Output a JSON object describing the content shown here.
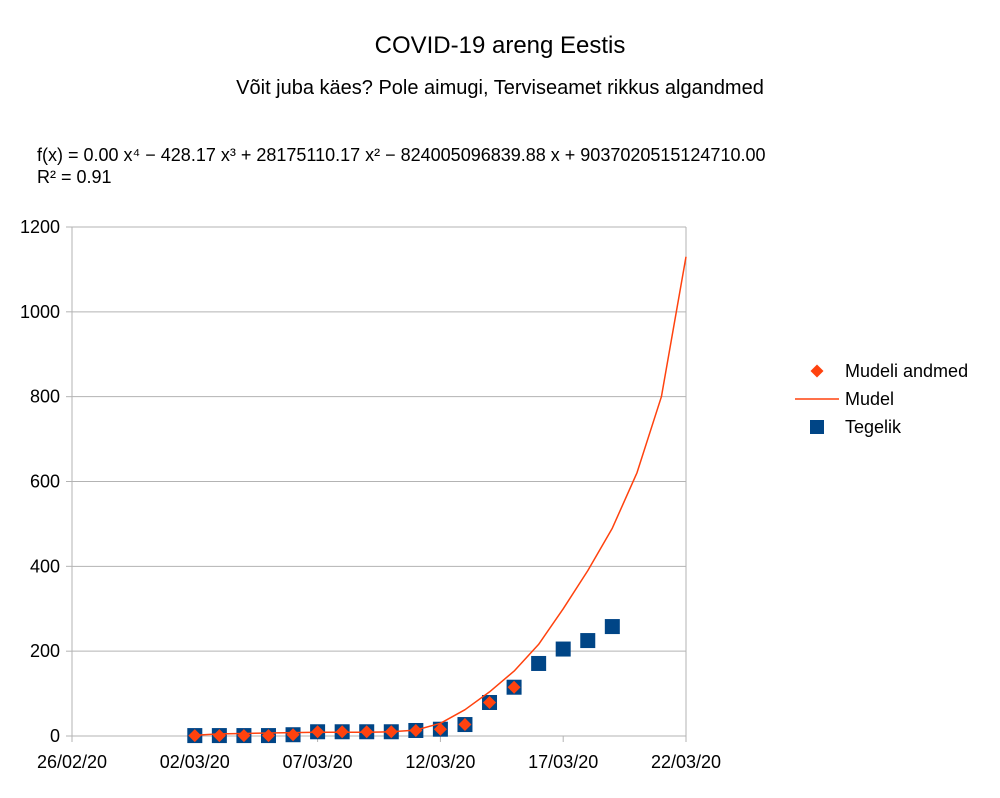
{
  "chart_data": {
    "type": "scatter",
    "title": "COVID-19 areng Eestis",
    "subtitle": "Võit juba käes? Pole aimugi, Terviseamet rikkus algandmed",
    "trendline": {
      "equation": "f(x) = 0.00 x⁴ − 428.17 x³ + 28175110.17 x² − 824005096839.88 x + 9037020515124710.00",
      "r_squared": "R² = 0.91"
    },
    "x_axis": {
      "type": "date",
      "min": "2020-02-26",
      "max": "2020-03-22",
      "ticks": [
        {
          "date": "2020-02-26",
          "label": "26/02/20"
        },
        {
          "date": "2020-03-02",
          "label": "02/03/20"
        },
        {
          "date": "2020-03-07",
          "label": "07/03/20"
        },
        {
          "date": "2020-03-12",
          "label": "12/03/20"
        },
        {
          "date": "2020-03-17",
          "label": "17/03/20"
        },
        {
          "date": "2020-03-22",
          "label": "22/03/20"
        }
      ]
    },
    "y_axis": {
      "min": 0,
      "max": 1200,
      "ticks": [
        0,
        200,
        400,
        600,
        800,
        1000,
        1200
      ],
      "gridlines": true
    },
    "legend": {
      "position": "right",
      "entries": [
        {
          "label": "Mudeli andmed",
          "marker": "diamond",
          "color": "#ff420e"
        },
        {
          "label": "Mudel",
          "marker": "line",
          "color": "#ff420e"
        },
        {
          "label": "Tegelik",
          "marker": "square",
          "color": "#004586"
        }
      ]
    },
    "series": [
      {
        "name": "Tegelik",
        "marker": "square",
        "color": "#004586",
        "points": [
          {
            "x": "2020-03-02",
            "y": 1
          },
          {
            "x": "2020-03-03",
            "y": 1
          },
          {
            "x": "2020-03-04",
            "y": 1
          },
          {
            "x": "2020-03-05",
            "y": 1
          },
          {
            "x": "2020-03-06",
            "y": 3
          },
          {
            "x": "2020-03-07",
            "y": 10
          },
          {
            "x": "2020-03-08",
            "y": 10
          },
          {
            "x": "2020-03-09",
            "y": 10
          },
          {
            "x": "2020-03-10",
            "y": 10
          },
          {
            "x": "2020-03-11",
            "y": 13
          },
          {
            "x": "2020-03-12",
            "y": 16
          },
          {
            "x": "2020-03-13",
            "y": 27
          },
          {
            "x": "2020-03-14",
            "y": 79
          },
          {
            "x": "2020-03-15",
            "y": 115
          },
          {
            "x": "2020-03-16",
            "y": 171
          },
          {
            "x": "2020-03-17",
            "y": 205
          },
          {
            "x": "2020-03-18",
            "y": 225
          },
          {
            "x": "2020-03-19",
            "y": 258
          }
        ]
      },
      {
        "name": "Mudeli andmed",
        "marker": "diamond",
        "color": "#ff420e",
        "points": [
          {
            "x": "2020-03-02",
            "y": 1
          },
          {
            "x": "2020-03-03",
            "y": 1
          },
          {
            "x": "2020-03-04",
            "y": 1
          },
          {
            "x": "2020-03-05",
            "y": 1
          },
          {
            "x": "2020-03-06",
            "y": 3
          },
          {
            "x": "2020-03-07",
            "y": 10
          },
          {
            "x": "2020-03-08",
            "y": 10
          },
          {
            "x": "2020-03-09",
            "y": 10
          },
          {
            "x": "2020-03-10",
            "y": 10
          },
          {
            "x": "2020-03-11",
            "y": 13
          },
          {
            "x": "2020-03-12",
            "y": 16
          },
          {
            "x": "2020-03-13",
            "y": 27
          },
          {
            "x": "2020-03-14",
            "y": 79
          },
          {
            "x": "2020-03-15",
            "y": 115
          }
        ]
      },
      {
        "name": "Mudel",
        "type": "line",
        "color": "#ff420e",
        "points": [
          {
            "x": "2020-03-02",
            "y": 2
          },
          {
            "x": "2020-03-03",
            "y": 5
          },
          {
            "x": "2020-03-04",
            "y": 6
          },
          {
            "x": "2020-03-05",
            "y": 7
          },
          {
            "x": "2020-03-06",
            "y": 8
          },
          {
            "x": "2020-03-07",
            "y": 9
          },
          {
            "x": "2020-03-08",
            "y": 9
          },
          {
            "x": "2020-03-09",
            "y": 9
          },
          {
            "x": "2020-03-10",
            "y": 10
          },
          {
            "x": "2020-03-11",
            "y": 14
          },
          {
            "x": "2020-03-12",
            "y": 30
          },
          {
            "x": "2020-03-13",
            "y": 62
          },
          {
            "x": "2020-03-14",
            "y": 104
          },
          {
            "x": "2020-03-15",
            "y": 153
          },
          {
            "x": "2020-03-16",
            "y": 216
          },
          {
            "x": "2020-03-17",
            "y": 300
          },
          {
            "x": "2020-03-18",
            "y": 390
          },
          {
            "x": "2020-03-19",
            "y": 490
          },
          {
            "x": "2020-03-20",
            "y": 620
          },
          {
            "x": "2020-03-21",
            "y": 800
          },
          {
            "x": "2020-03-22",
            "y": 1130
          }
        ]
      }
    ]
  }
}
